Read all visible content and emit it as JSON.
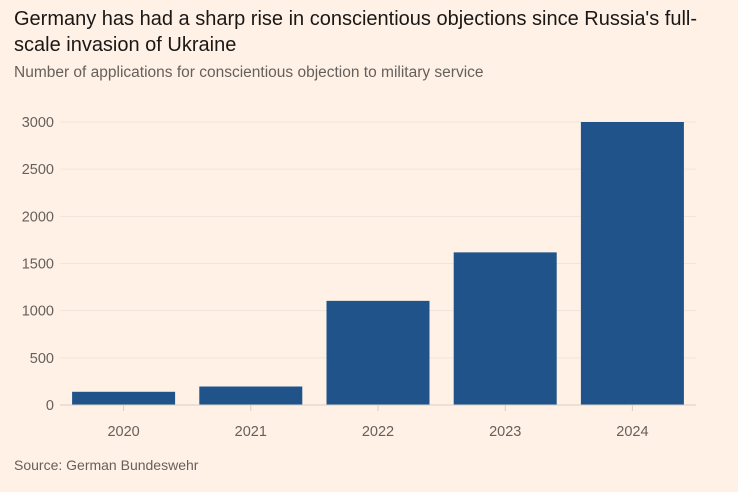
{
  "title": "Germany has had a sharp rise in conscientious objections since Russia's full-scale invasion of Ukraine",
  "subtitle": "Number of applications for conscientious objection to military service",
  "source": "Source: German Bundeswehr",
  "colors": {
    "bar": "#1f538a",
    "background": "#fff1e5",
    "grid": "#efe5dc"
  },
  "chart_data": {
    "type": "bar",
    "categories": [
      "2020",
      "2021",
      "2022",
      "2023",
      "2024"
    ],
    "values": [
      140,
      196,
      1104,
      1618,
      3000
    ],
    "ylim": [
      0,
      3000
    ],
    "yticks": [
      0,
      500,
      1000,
      1500,
      2000,
      2500,
      3000
    ],
    "grid": true,
    "xlabel": "",
    "ylabel": ""
  }
}
